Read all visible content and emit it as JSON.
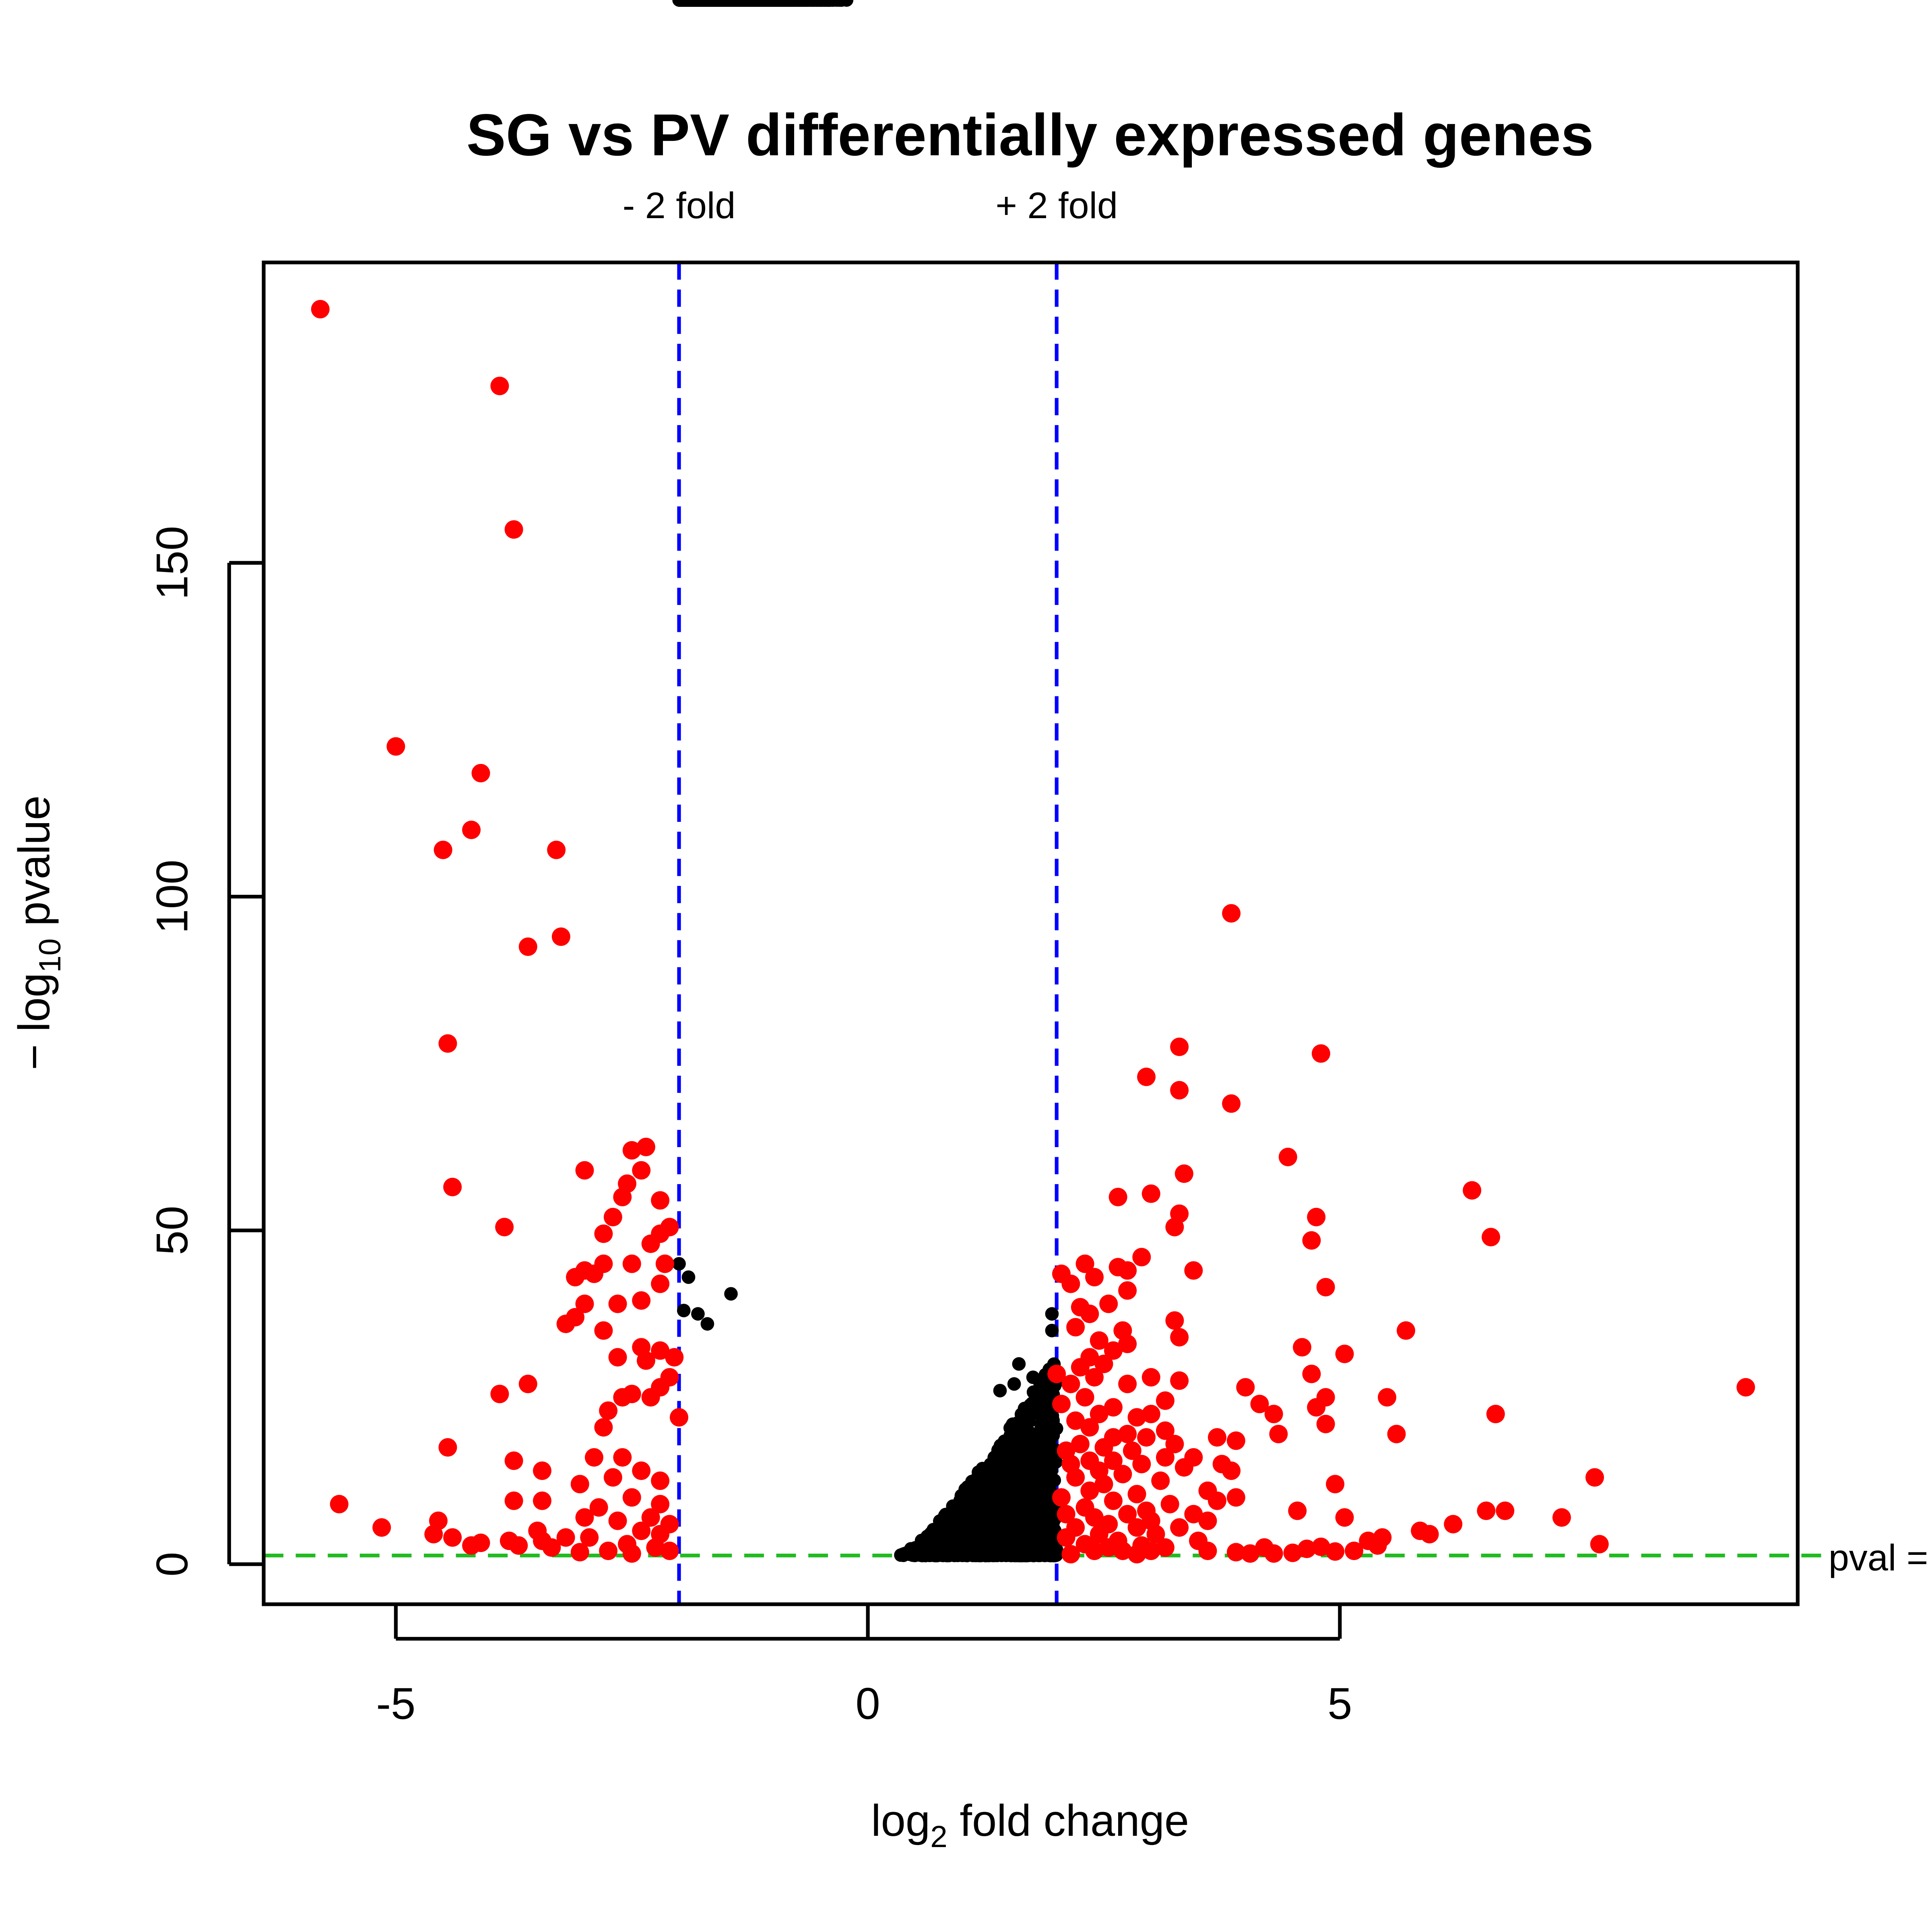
{
  "chart_data": {
    "type": "scatter",
    "title": "SG vs PV differentially expressed genes",
    "xlabel": {
      "base": "log",
      "sub": "2",
      "rest": " fold change"
    },
    "ylabel": {
      "prefix": "− log",
      "sub": "10",
      "rest": " pvalue"
    },
    "xlim": [
      -6.4,
      9.85
    ],
    "ylim": [
      -6,
      195
    ],
    "xticks": [
      -5,
      0,
      5
    ],
    "xtick_labels": [
      "-5",
      "0",
      "5"
    ],
    "yticks": [
      0,
      50,
      100,
      150
    ],
    "ytick_labels": [
      "0",
      "50",
      "100",
      "150"
    ],
    "grid": false,
    "reference_lines": {
      "vertical": [
        {
          "x": -2,
          "label": "- 2 fold",
          "color": "#0000ff"
        },
        {
          "x": 2,
          "label": "+ 2 fold",
          "color": "#0000ff"
        }
      ],
      "horizontal": {
        "y": 1.3,
        "label": "pval =",
        "color": "#22bb22"
      }
    },
    "colors": {
      "significant": "#ff0000",
      "not_significant": "#000000"
    },
    "series": [
      {
        "color": "#ff0000",
        "points": [
          [
            -5.8,
            188
          ],
          [
            -3.9,
            176.5
          ],
          [
            -3.75,
            155
          ],
          [
            -5.0,
            122.5
          ],
          [
            -4.1,
            118.5
          ],
          [
            -4.2,
            110
          ],
          [
            -4.5,
            107
          ],
          [
            -3.3,
            107
          ],
          [
            -3.6,
            92.5
          ],
          [
            -3.25,
            94
          ],
          [
            -4.45,
            78
          ],
          [
            -4.4,
            56.5
          ],
          [
            -3.85,
            50.5
          ],
          [
            -3.0,
            59
          ],
          [
            -2.35,
            62.5
          ],
          [
            -2.5,
            62
          ],
          [
            -2.4,
            59
          ],
          [
            -2.55,
            57
          ],
          [
            -2.6,
            55
          ],
          [
            -2.2,
            54.5
          ],
          [
            -2.7,
            52
          ],
          [
            -2.8,
            49.5
          ],
          [
            -2.1,
            50.5
          ],
          [
            -2.2,
            49.5
          ],
          [
            -2.3,
            48
          ],
          [
            -2.15,
            45
          ],
          [
            -2.5,
            45
          ],
          [
            -2.8,
            45
          ],
          [
            -2.9,
            43.5
          ],
          [
            -2.2,
            42
          ],
          [
            -3.0,
            44
          ],
          [
            -3.1,
            43
          ],
          [
            -2.4,
            39.5
          ],
          [
            -2.65,
            39
          ],
          [
            -3.0,
            39
          ],
          [
            -3.1,
            37
          ],
          [
            -3.2,
            36
          ],
          [
            -2.8,
            35
          ],
          [
            -2.4,
            32.5
          ],
          [
            -2.2,
            32
          ],
          [
            -2.65,
            31
          ],
          [
            -2.35,
            30.5
          ],
          [
            -2.05,
            31
          ],
          [
            -2.1,
            28
          ],
          [
            -2.2,
            26.5
          ],
          [
            -2.5,
            25.5
          ],
          [
            -2.6,
            25
          ],
          [
            -2.3,
            25
          ],
          [
            -2.75,
            23
          ],
          [
            -2.0,
            22
          ],
          [
            -2.8,
            20.5
          ],
          [
            -2.9,
            16
          ],
          [
            -2.6,
            16
          ],
          [
            -2.4,
            14
          ],
          [
            -2.7,
            13
          ],
          [
            -2.2,
            12.5
          ],
          [
            -3.6,
            27
          ],
          [
            -3.9,
            25.5
          ],
          [
            -4.45,
            17.5
          ],
          [
            -3.75,
            15.5
          ],
          [
            -3.45,
            14
          ],
          [
            -3.05,
            12
          ],
          [
            -2.5,
            10
          ],
          [
            -2.2,
            9
          ],
          [
            -3.45,
            9.5
          ],
          [
            -3.75,
            9.5
          ],
          [
            -2.85,
            8.5
          ],
          [
            -2.3,
            7
          ],
          [
            -3.0,
            7
          ],
          [
            -2.65,
            6.5
          ],
          [
            -2.1,
            6
          ],
          [
            -3.5,
            5
          ],
          [
            -2.4,
            5
          ],
          [
            -2.2,
            4.5
          ],
          [
            -3.2,
            4
          ],
          [
            -2.95,
            4
          ],
          [
            -3.8,
            3.5
          ],
          [
            -2.55,
            3
          ],
          [
            -2.25,
            2.5
          ],
          [
            -3.35,
            2.5
          ],
          [
            -2.75,
            2
          ],
          [
            -2.1,
            2
          ],
          [
            -3.05,
            1.8
          ],
          [
            -2.5,
            1.6
          ],
          [
            -5.6,
            9
          ],
          [
            -5.15,
            5.5
          ],
          [
            -4.55,
            6.5
          ],
          [
            -4.6,
            4.5
          ],
          [
            -4.4,
            4
          ],
          [
            -4.1,
            3.2
          ],
          [
            -4.2,
            2.8
          ],
          [
            -3.7,
            2.8
          ],
          [
            -3.45,
            3.5
          ],
          [
            3.85,
            97.5
          ],
          [
            3.3,
            77.5
          ],
          [
            4.8,
            76.5
          ],
          [
            2.95,
            73
          ],
          [
            3.3,
            71
          ],
          [
            3.85,
            69
          ],
          [
            4.45,
            61
          ],
          [
            3.35,
            58.5
          ],
          [
            6.4,
            56
          ],
          [
            2.65,
            55
          ],
          [
            3.0,
            55.5
          ],
          [
            3.3,
            52.5
          ],
          [
            4.75,
            52
          ],
          [
            3.25,
            50.5
          ],
          [
            6.6,
            49
          ],
          [
            4.7,
            48.5
          ],
          [
            2.9,
            46
          ],
          [
            2.3,
            45
          ],
          [
            2.65,
            44.5
          ],
          [
            2.75,
            44
          ],
          [
            3.45,
            44
          ],
          [
            2.05,
            43.5
          ],
          [
            2.4,
            43
          ],
          [
            2.15,
            42
          ],
          [
            4.85,
            41.5
          ],
          [
            2.75,
            41
          ],
          [
            2.55,
            39
          ],
          [
            2.25,
            38.5
          ],
          [
            2.35,
            37.5
          ],
          [
            3.25,
            36.5
          ],
          [
            2.2,
            35.5
          ],
          [
            2.7,
            35
          ],
          [
            5.7,
            35
          ],
          [
            3.3,
            34
          ],
          [
            2.45,
            33.5
          ],
          [
            2.75,
            33
          ],
          [
            2.6,
            32
          ],
          [
            4.6,
            32.5
          ],
          [
            5.05,
            31.5
          ],
          [
            2.35,
            31
          ],
          [
            2.5,
            30
          ],
          [
            2.25,
            29.5
          ],
          [
            2.0,
            28.5
          ],
          [
            2.4,
            28
          ],
          [
            4.7,
            28.5
          ],
          [
            3.0,
            28
          ],
          [
            3.3,
            27.5
          ],
          [
            2.15,
            27
          ],
          [
            2.75,
            27
          ],
          [
            4.0,
            26.5
          ],
          [
            9.3,
            26.5
          ],
          [
            2.3,
            25
          ],
          [
            4.85,
            25
          ],
          [
            5.5,
            25
          ],
          [
            3.15,
            24.5
          ],
          [
            2.05,
            24
          ],
          [
            4.15,
            24
          ],
          [
            2.6,
            23.5
          ],
          [
            4.75,
            23.5
          ],
          [
            3.0,
            22.5
          ],
          [
            2.85,
            22
          ],
          [
            2.45,
            22.5
          ],
          [
            4.3,
            22.5
          ],
          [
            6.65,
            22.5
          ],
          [
            2.2,
            21.5
          ],
          [
            4.85,
            21
          ],
          [
            2.35,
            20.5
          ],
          [
            3.15,
            20
          ],
          [
            2.75,
            19.5
          ],
          [
            4.35,
            19.5
          ],
          [
            5.6,
            19.5
          ],
          [
            2.6,
            19
          ],
          [
            2.95,
            19
          ],
          [
            3.7,
            19
          ],
          [
            3.9,
            18.5
          ],
          [
            2.25,
            18
          ],
          [
            2.5,
            17.5
          ],
          [
            3.25,
            18
          ],
          [
            2.1,
            17
          ],
          [
            2.8,
            17
          ],
          [
            3.15,
            16
          ],
          [
            3.45,
            16
          ],
          [
            2.35,
            15.5
          ],
          [
            2.6,
            15.5
          ],
          [
            3.75,
            15
          ],
          [
            2.15,
            15
          ],
          [
            2.9,
            15
          ],
          [
            3.35,
            14.5
          ],
          [
            2.45,
            14
          ],
          [
            3.85,
            14
          ],
          [
            2.7,
            13.5
          ],
          [
            2.2,
            13
          ],
          [
            3.1,
            12.5
          ],
          [
            4.95,
            12
          ],
          [
            7.7,
            13
          ],
          [
            2.5,
            12
          ],
          [
            3.6,
            11
          ],
          [
            2.35,
            11
          ],
          [
            2.85,
            10.5
          ],
          [
            3.9,
            10
          ],
          [
            3.7,
            9.5
          ],
          [
            2.05,
            10
          ],
          [
            2.6,
            9.5
          ],
          [
            3.2,
            9
          ],
          [
            2.3,
            8.5
          ],
          [
            2.95,
            8
          ],
          [
            4.55,
            8
          ],
          [
            6.55,
            8
          ],
          [
            6.75,
            8
          ],
          [
            2.1,
            7.5
          ],
          [
            2.75,
            7.5
          ],
          [
            3.45,
            7.5
          ],
          [
            5.05,
            7
          ],
          [
            7.35,
            7
          ],
          [
            2.4,
            7
          ],
          [
            3.0,
            6.5
          ],
          [
            3.6,
            6.5
          ],
          [
            2.55,
            6
          ],
          [
            6.2,
            6
          ],
          [
            2.2,
            5.5
          ],
          [
            2.85,
            5.5
          ],
          [
            3.3,
            5.5
          ],
          [
            5.85,
            5
          ],
          [
            5.95,
            4.5
          ],
          [
            2.45,
            4.5
          ],
          [
            3.05,
            4.5
          ],
          [
            5.45,
            4
          ],
          [
            2.1,
            4
          ],
          [
            2.65,
            3.5
          ],
          [
            3.5,
            3.5
          ],
          [
            5.3,
            3.5
          ],
          [
            7.75,
            3
          ],
          [
            2.3,
            3
          ],
          [
            2.9,
            2.8
          ],
          [
            4.2,
            2.5
          ],
          [
            5.4,
            2.8
          ],
          [
            2.55,
            2.5
          ],
          [
            3.15,
            2.5
          ],
          [
            4.65,
            2.3
          ],
          [
            4.8,
            2.6
          ],
          [
            2.4,
            2
          ],
          [
            2.7,
            2
          ],
          [
            3.0,
            2
          ],
          [
            3.6,
            2
          ],
          [
            3.9,
            1.8
          ],
          [
            4.05,
            1.6
          ],
          [
            4.3,
            1.6
          ],
          [
            4.5,
            1.7
          ],
          [
            4.95,
            1.9
          ],
          [
            5.15,
            2.0
          ],
          [
            2.15,
            1.5
          ],
          [
            2.85,
            1.5
          ]
        ]
      }
    ]
  }
}
